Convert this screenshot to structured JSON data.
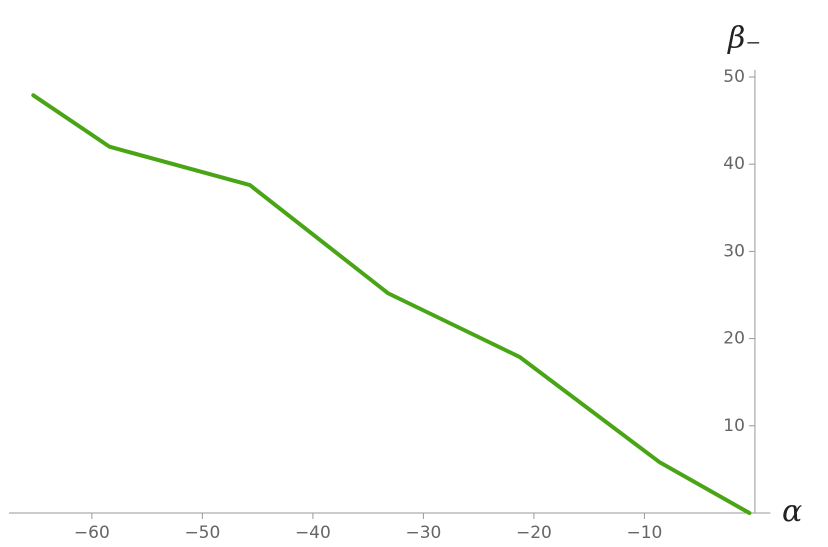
{
  "chart_data": {
    "type": "line",
    "x_label": "α",
    "y_label": "β₋",
    "x": [
      -65.3,
      -58.4,
      -45.7,
      -33.2,
      -21.3,
      -8.6,
      -0.5
    ],
    "series": [
      {
        "color": "#4aa516",
        "values": [
          47.9,
          42.0,
          37.6,
          25.2,
          17.9,
          5.8,
          0
        ]
      }
    ],
    "xlim": [
      -67.5,
      1.4
    ],
    "ylim": [
      0,
      50.8
    ],
    "xticks": [
      {
        "value": -60,
        "label": "−60"
      },
      {
        "value": -50,
        "label": "−50"
      },
      {
        "value": -40,
        "label": "−40"
      },
      {
        "value": -30,
        "label": "−30"
      },
      {
        "value": -20,
        "label": "−20"
      },
      {
        "value": -10,
        "label": "−10"
      }
    ],
    "yticks": [
      10,
      20,
      30,
      40,
      50
    ]
  }
}
